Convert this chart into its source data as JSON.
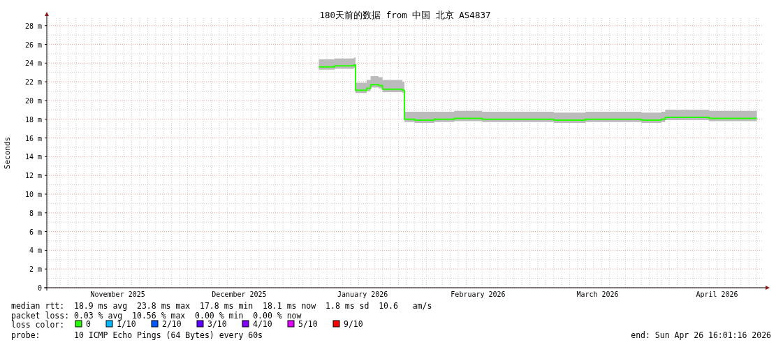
{
  "chart_data": {
    "type": "line",
    "title": "180天前的数据 from 中国 北京 AS4837",
    "ylabel": "Seconds",
    "xlim": [
      "2025-10-28T16:01",
      "2026-04-26T16:01"
    ],
    "xticks": [
      {
        "value": "2025-11-15T12:00",
        "label": "November 2025"
      },
      {
        "value": "2025-12-16",
        "label": "December 2025"
      },
      {
        "value": "2026-01-16",
        "label": "January 2026"
      },
      {
        "value": "2026-02-14",
        "label": "February 2026"
      },
      {
        "value": "2026-03-16",
        "label": "March 2026"
      },
      {
        "value": "2026-04-15",
        "label": "April 2026"
      }
    ],
    "ylim": [
      0,
      28.8
    ],
    "yticks": [
      0,
      {
        "value": 2,
        "label": "2 m"
      },
      {
        "value": 4,
        "label": "4 m"
      },
      {
        "value": 6,
        "label": "6 m"
      },
      {
        "value": 8,
        "label": "8 m"
      },
      {
        "value": 10,
        "label": "10 m"
      },
      {
        "value": 12,
        "label": "12 m"
      },
      {
        "value": 14,
        "label": "14 m"
      },
      {
        "value": 16,
        "label": "16 m"
      },
      {
        "value": 18,
        "label": "18 m"
      },
      {
        "value": 20,
        "label": "20 m"
      },
      {
        "value": 22,
        "label": "22 m"
      },
      {
        "value": 24,
        "label": "24 m"
      },
      {
        "value": 26,
        "label": "26 m"
      },
      {
        "value": 28,
        "label": "28 m"
      }
    ],
    "grid": true,
    "line_style": "solid",
    "series": [
      {
        "color": "#26ff00",
        "x": [
          "2026-01-05",
          "2026-01-09",
          "2026-01-13T20:00",
          "2026-01-14T05:00",
          "2026-01-17",
          "2026-01-18",
          "2026-01-20",
          "2026-01-21",
          "2026-01-26",
          "2026-01-26T12:00",
          "2026-01-29",
          "2026-02-03",
          "2026-02-08",
          "2026-02-15",
          "2026-02-23",
          "2026-03-05",
          "2026-03-13",
          "2026-03-22",
          "2026-03-27",
          "2026-04-01",
          "2026-04-02",
          "2026-04-08",
          "2026-04-13",
          "2026-04-20",
          "2026-04-25"
        ],
        "values": [
          23.6,
          23.7,
          23.8,
          21.1,
          21.3,
          21.7,
          21.6,
          21.2,
          21.1,
          18.0,
          17.9,
          18.0,
          18.1,
          18.0,
          18.0,
          17.9,
          18.0,
          18.0,
          17.9,
          18.0,
          18.2,
          18.2,
          18.1,
          18.1,
          18.1
        ],
        "lower": [
          23.3,
          23.4,
          23.5,
          20.8,
          21.0,
          21.4,
          21.3,
          20.9,
          20.8,
          17.7,
          17.6,
          17.7,
          17.8,
          17.7,
          17.7,
          17.6,
          17.7,
          17.7,
          17.6,
          17.7,
          17.9,
          17.9,
          17.8,
          17.8,
          17.8
        ],
        "upper": [
          24.4,
          24.5,
          24.6,
          21.9,
          22.2,
          22.6,
          22.5,
          22.2,
          22.0,
          18.8,
          18.8,
          18.8,
          18.9,
          18.8,
          18.8,
          18.7,
          18.8,
          18.8,
          18.7,
          18.8,
          19.0,
          19.0,
          18.9,
          18.9,
          18.9
        ]
      }
    ],
    "annotations": [
      "median rtt:  18.9 ms avg  23.8 ms max  17.8 ms min  18.1 ms now  1.8 ms sd  10.6   am/s",
      "packet loss: 0.03 % avg  10.56 % max  0.00 % min  0.00 % now",
      "loss color:",
      "0",
      "1/10",
      "2/10",
      "3/10",
      "4/10",
      "5/10",
      "9/10",
      "probe:       10 ICMP Echo Pings (64 Bytes) every 60s",
      "end: Sun Apr 26 16:01:16 2026"
    ]
  }
}
